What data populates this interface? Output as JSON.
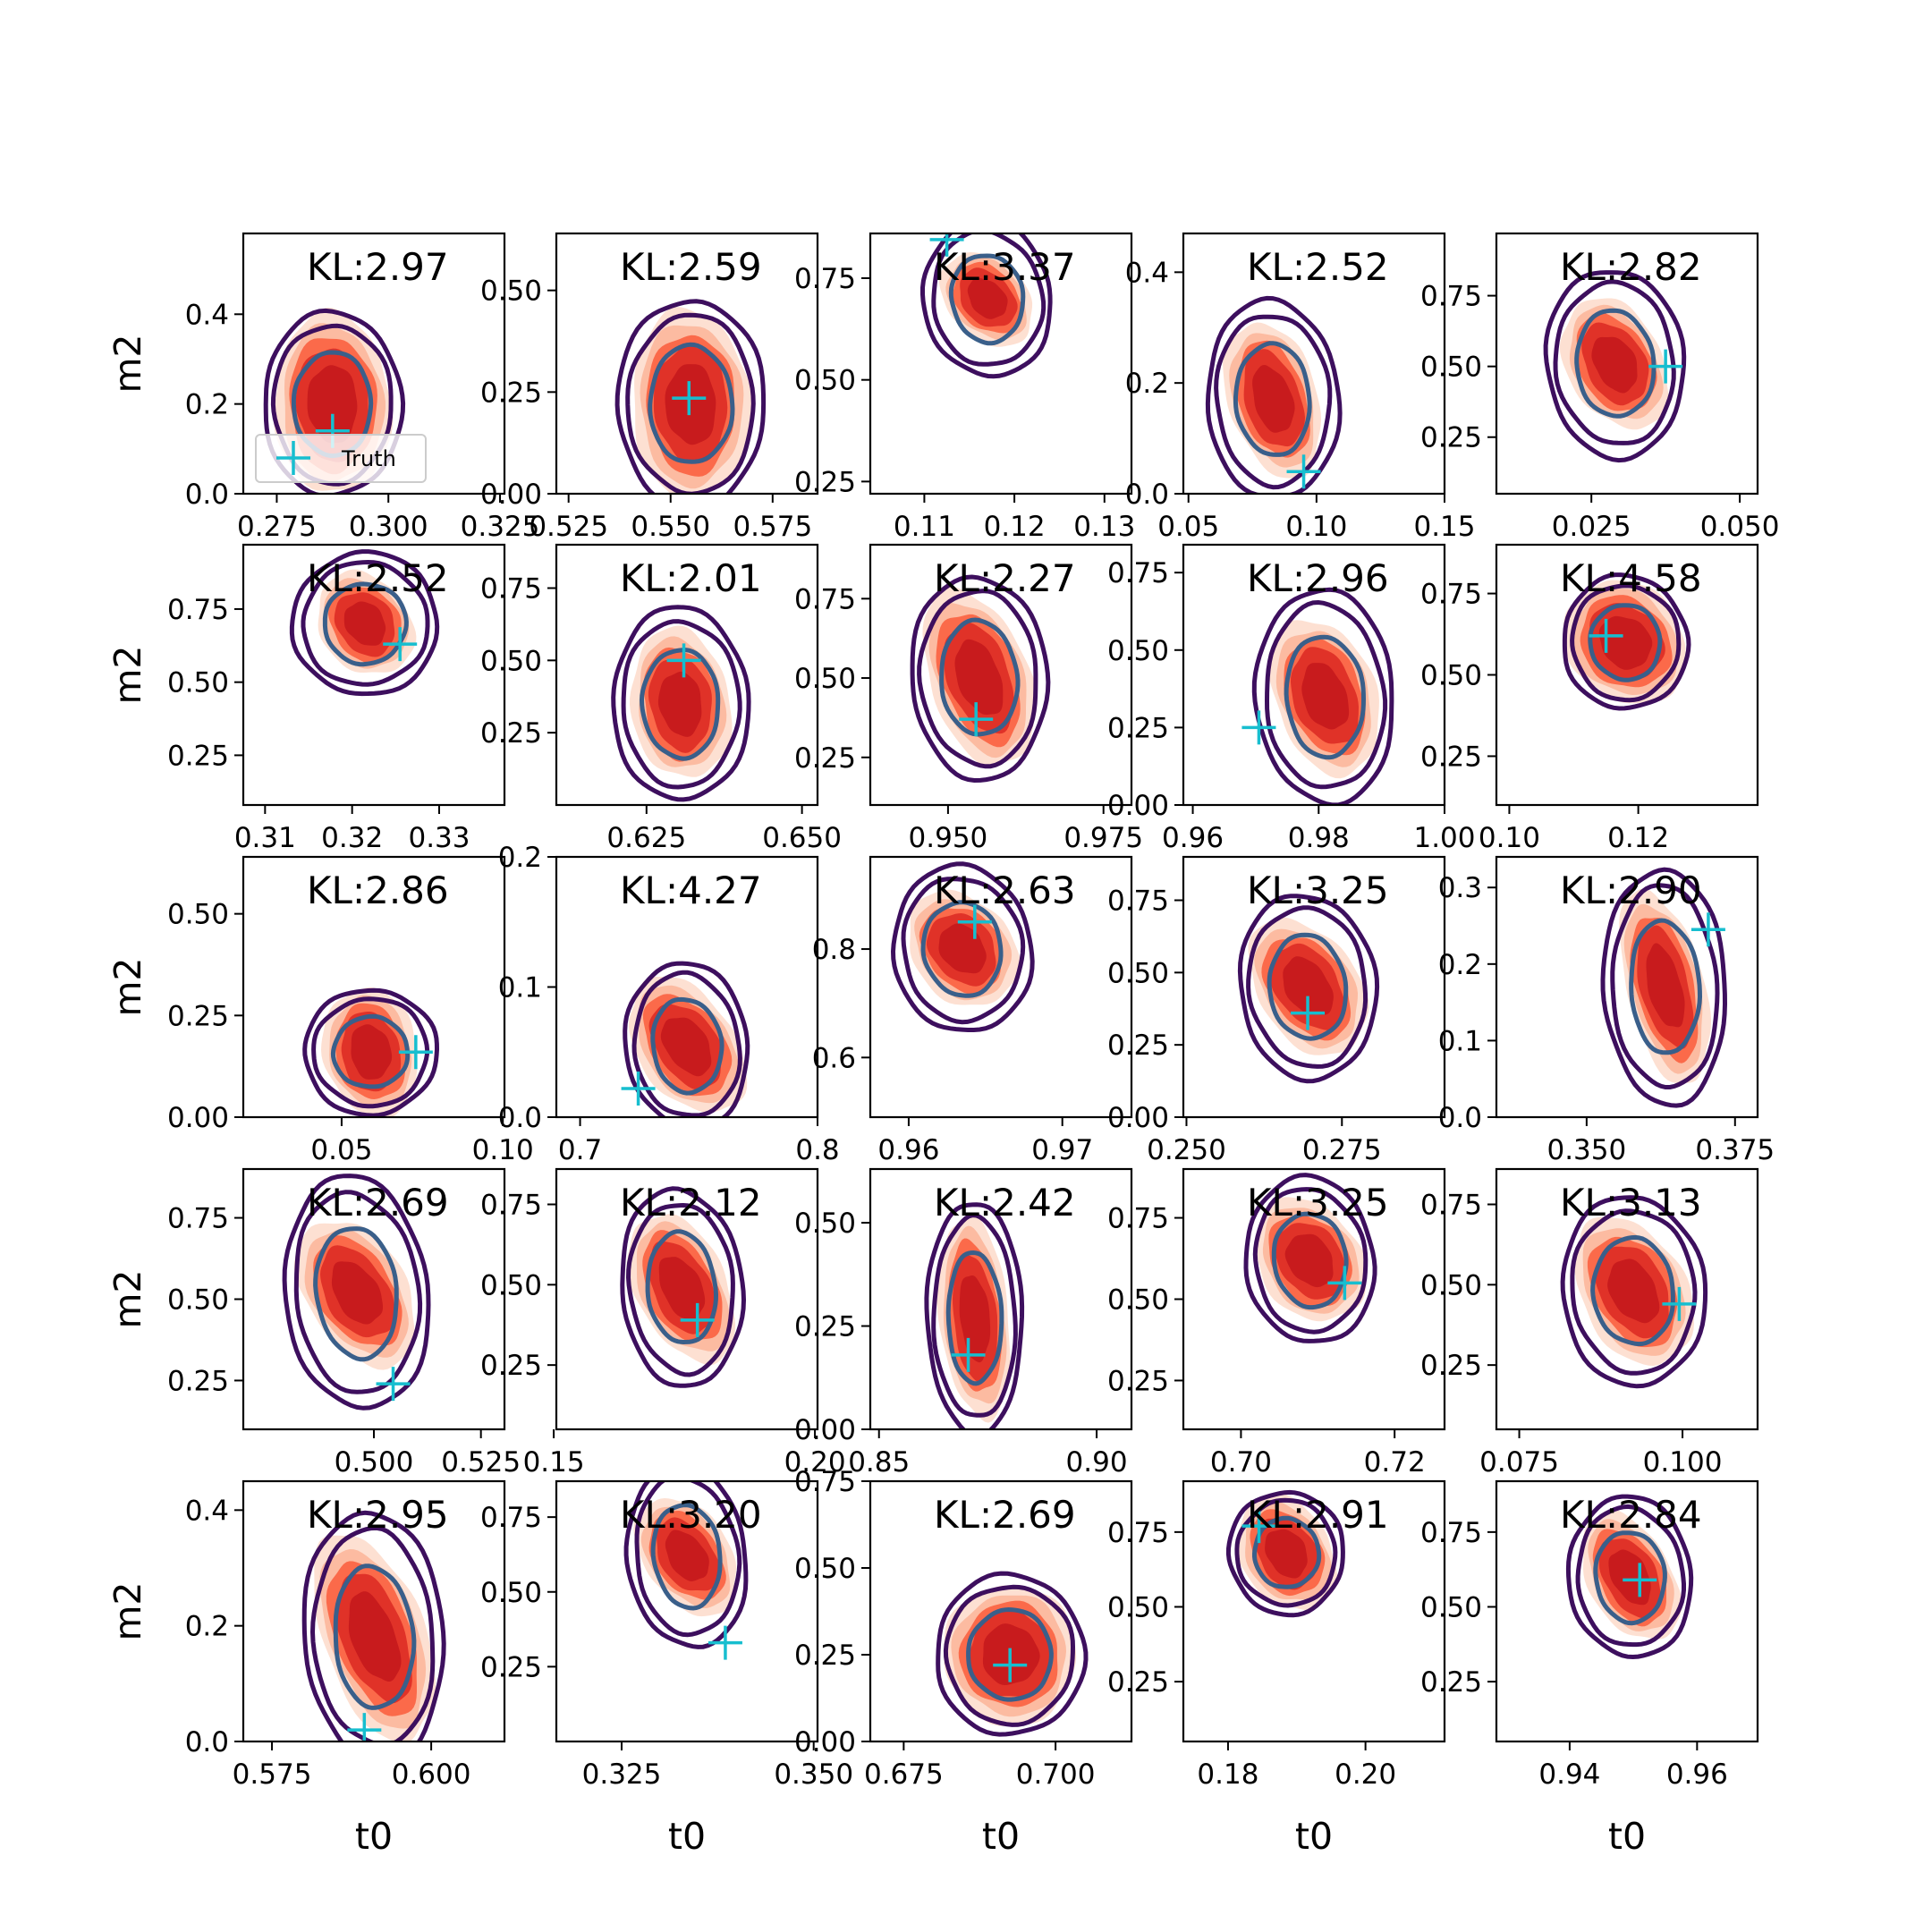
{
  "colors": {
    "posterior_fill": [
      "#fde0d2",
      "#fcbba1",
      "#fb6a4a",
      "#e03228",
      "#c81b1d"
    ],
    "prior_outer": "#3d0f5e",
    "prior_inner": "#3a5f8a",
    "truth_marker": "#17becf",
    "axes": "#000000"
  },
  "legend": {
    "label": "Truth",
    "marker": "plus-icon"
  },
  "axis_labels": {
    "x": "t0",
    "y": "m2"
  },
  "chart_data": [
    {
      "type": "contour",
      "kl": "KL:2.97",
      "xlim": [
        0.2675,
        0.326
      ],
      "ylim": [
        0,
        0.58
      ],
      "xticks": [
        0.275,
        0.3,
        0.325
      ],
      "xticklabels": [
        "0.275",
        "0.300",
        "0.325"
      ],
      "yticks": [
        0,
        0.2,
        0.4
      ],
      "yticklabels": [
        "0.0",
        "0.2",
        "0.4"
      ],
      "truth": [
        0.2875,
        0.14
      ],
      "center": [
        0.2875,
        0.2
      ],
      "post": [
        0.009,
        0.14
      ],
      "tilt": -0.05,
      "prior": [
        0.012,
        0.16
      ],
      "ylabel": true,
      "legend": true
    },
    {
      "type": "contour",
      "kl": "KL:2.59",
      "xlim": [
        0.522,
        0.586
      ],
      "ylim": [
        0,
        0.64
      ],
      "xticks": [
        0.525,
        0.55,
        0.575
      ],
      "xticklabels": [
        "0.525",
        "0.550",
        "0.575"
      ],
      "yticks": [
        0,
        0.25,
        0.5
      ],
      "yticklabels": [
        "0.00",
        "0.25",
        "0.50"
      ],
      "truth": [
        0.5545,
        0.235
      ],
      "center": [
        0.555,
        0.22
      ],
      "post": [
        0.01,
        0.16
      ],
      "tilt": -0.05,
      "prior": [
        0.014,
        0.2
      ]
    },
    {
      "type": "contour",
      "kl": "KL:3.37",
      "xlim": [
        0.104,
        0.133
      ],
      "ylim": [
        0.22,
        0.86
      ],
      "xticks": [
        0.11,
        0.12,
        0.13
      ],
      "xticklabels": [
        "0.11",
        "0.12",
        "0.13"
      ],
      "yticks": [
        0.25,
        0.5,
        0.75
      ],
      "yticklabels": [
        "0.25",
        "0.50",
        "0.75"
      ],
      "truth": [
        0.1125,
        0.845
      ],
      "center": [
        0.117,
        0.7
      ],
      "post": [
        0.003,
        0.09
      ],
      "tilt": -0.75,
      "prior": [
        0.0055,
        0.15
      ]
    },
    {
      "type": "contour",
      "kl": "KL:2.52",
      "xlim": [
        0.048,
        0.15
      ],
      "ylim": [
        0,
        0.47
      ],
      "xticks": [
        0.05,
        0.1,
        0.15
      ],
      "xticklabels": [
        "0.05",
        "0.10",
        "0.15"
      ],
      "yticks": [
        0,
        0.2,
        0.4
      ],
      "yticklabels": [
        "0.0",
        "0.2",
        "0.4"
      ],
      "truth": [
        0.095,
        0.04
      ],
      "center": [
        0.083,
        0.17
      ],
      "post": [
        0.012,
        0.1
      ],
      "tilt": -0.3,
      "prior": [
        0.02,
        0.14
      ]
    },
    {
      "type": "contour",
      "kl": "KL:2.82",
      "xlim": [
        0.009,
        0.053
      ],
      "ylim": [
        0.05,
        0.97
      ],
      "xticks": [
        0.025,
        0.05
      ],
      "xticklabels": [
        "0.025",
        "0.050"
      ],
      "yticks": [
        0.25,
        0.5,
        0.75
      ],
      "yticklabels": [
        "0.25",
        "0.50",
        "0.75"
      ],
      "truth": [
        0.0375,
        0.5
      ],
      "center": [
        0.029,
        0.51
      ],
      "post": [
        0.0055,
        0.17
      ],
      "tilt": -0.5,
      "prior": [
        0.009,
        0.26
      ]
    },
    {
      "type": "contour",
      "kl": "KL:2.52",
      "xlim": [
        0.3075,
        0.3375
      ],
      "ylim": [
        0.08,
        0.97
      ],
      "xticks": [
        0.31,
        0.32,
        0.33
      ],
      "xticklabels": [
        "0.31",
        "0.32",
        "0.33"
      ],
      "yticks": [
        0.25,
        0.5,
        0.75
      ],
      "yticklabels": [
        "0.25",
        "0.50",
        "0.75"
      ],
      "truth": [
        0.3255,
        0.63
      ],
      "center": [
        0.3215,
        0.7
      ],
      "post": [
        0.0035,
        0.13
      ],
      "tilt": -0.65,
      "prior": [
        0.0065,
        0.19
      ],
      "ylabel": true
    },
    {
      "type": "contour",
      "kl": "KL:2.01",
      "xlim": [
        0.6105,
        0.6525
      ],
      "ylim": [
        0,
        0.9
      ],
      "xticks": [
        0.625,
        0.65
      ],
      "xticklabels": [
        "0.625",
        "0.650"
      ],
      "yticks": [
        0.25,
        0.5,
        0.75
      ],
      "yticklabels": [
        "0.25",
        "0.50",
        "0.75"
      ],
      "truth": [
        0.631,
        0.5
      ],
      "center": [
        0.6305,
        0.35
      ],
      "post": [
        0.0055,
        0.18
      ],
      "tilt": -0.15,
      "prior": [
        0.0085,
        0.26
      ]
    },
    {
      "type": "contour",
      "kl": "KL:2.27",
      "xlim": [
        0.9375,
        0.9795
      ],
      "ylim": [
        0.1,
        0.92
      ],
      "xticks": [
        0.95,
        0.975
      ],
      "xticklabels": [
        "0.950",
        "0.975"
      ],
      "yticks": [
        0.25,
        0.5,
        0.75
      ],
      "yticklabels": [
        "0.25",
        "0.50",
        "0.75"
      ],
      "truth": [
        0.9545,
        0.37
      ],
      "center": [
        0.955,
        0.5
      ],
      "post": [
        0.0055,
        0.2
      ],
      "tilt": -0.35,
      "prior": [
        0.0085,
        0.25
      ]
    },
    {
      "type": "contour",
      "kl": "KL:2.96",
      "xlim": [
        0.9585,
        1.0
      ],
      "ylim": [
        0,
        0.84
      ],
      "xticks": [
        0.96,
        0.98,
        1.0
      ],
      "xticklabels": [
        "0.96",
        "0.98",
        "1.00"
      ],
      "yticks": [
        0,
        0.25,
        0.5,
        0.75
      ],
      "yticklabels": [
        "0.00",
        "0.25",
        "0.50",
        "0.75"
      ],
      "truth": [
        0.9705,
        0.25
      ],
      "center": [
        0.981,
        0.35
      ],
      "post": [
        0.0055,
        0.18
      ],
      "tilt": -0.35,
      "prior": [
        0.0085,
        0.27
      ]
    },
    {
      "type": "contour",
      "kl": "KL:4.58",
      "xlim": [
        0.098,
        0.1385
      ],
      "ylim": [
        0.1,
        0.9
      ],
      "xticks": [
        0.1,
        0.12
      ],
      "xticklabels": [
        "0.10",
        "0.12"
      ],
      "yticks": [
        0.25,
        0.5,
        0.75
      ],
      "yticklabels": [
        "0.25",
        "0.50",
        "0.75"
      ],
      "truth": [
        0.115,
        0.62
      ],
      "center": [
        0.118,
        0.6
      ],
      "post": [
        0.006,
        0.14
      ],
      "tilt": -0.75,
      "prior": [
        0.0075,
        0.16
      ]
    },
    {
      "type": "contour",
      "kl": "KL:2.86",
      "xlim": [
        0.0195,
        0.1005
      ],
      "ylim": [
        0,
        0.64
      ],
      "xticks": [
        0.05,
        0.1
      ],
      "xticklabels": [
        "0.05",
        "0.10"
      ],
      "yticks": [
        0,
        0.25,
        0.5
      ],
      "yticklabels": [
        "0.00",
        "0.25",
        "0.50"
      ],
      "truth": [
        0.073,
        0.16
      ],
      "center": [
        0.059,
        0.16
      ],
      "post": [
        0.01,
        0.11
      ],
      "tilt": -0.2,
      "prior": [
        0.016,
        0.12
      ],
      "ylabel": true
    },
    {
      "type": "contour",
      "kl": "KL:4.27",
      "xlim": [
        0.69,
        0.8
      ],
      "ylim": [
        0,
        0.2
      ],
      "xticks": [
        0.7,
        0.8
      ],
      "xticklabels": [
        "0.7",
        "0.8"
      ],
      "yticks": [
        0,
        0.1,
        0.2
      ],
      "yticklabels": [
        "0.0",
        "0.1",
        "0.2"
      ],
      "truth": [
        0.7245,
        0.022
      ],
      "center": [
        0.745,
        0.055
      ],
      "post": [
        0.014,
        0.04
      ],
      "tilt": -0.6,
      "prior": [
        0.02,
        0.05
      ]
    },
    {
      "type": "contour",
      "kl": "KL:2.63",
      "xlim": [
        0.9575,
        0.9745
      ],
      "ylim": [
        0.49,
        0.97
      ],
      "xticks": [
        0.96,
        0.97
      ],
      "xticklabels": [
        "0.96",
        "0.97"
      ],
      "yticks": [
        0.6,
        0.8
      ],
      "yticklabels": [
        "0.6",
        "0.8"
      ],
      "truth": [
        0.9643,
        0.85
      ],
      "center": [
        0.9635,
        0.8
      ],
      "post": [
        0.0022,
        0.08
      ],
      "tilt": -0.7,
      "prior": [
        0.0035,
        0.12
      ]
    },
    {
      "type": "contour",
      "kl": "KL:3.25",
      "xlim": [
        0.2495,
        0.2915
      ],
      "ylim": [
        0,
        0.9
      ],
      "xticks": [
        0.25,
        0.275
      ],
      "xticklabels": [
        "0.250",
        "0.275"
      ],
      "yticks": [
        0,
        0.25,
        0.5,
        0.75
      ],
      "yticklabels": [
        "0.00",
        "0.25",
        "0.50",
        "0.75"
      ],
      "truth": [
        0.2695,
        0.36
      ],
      "center": [
        0.2695,
        0.45
      ],
      "post": [
        0.0055,
        0.18
      ],
      "tilt": -0.6,
      "prior": [
        0.0085,
        0.25
      ]
    },
    {
      "type": "contour",
      "kl": "KL:2.90",
      "xlim": [
        0.3348,
        0.3788
      ],
      "ylim": [
        0,
        0.34
      ],
      "xticks": [
        0.35,
        0.375
      ],
      "xticklabels": [
        "0.350",
        "0.375"
      ],
      "yticks": [
        0,
        0.1,
        0.2,
        0.3
      ],
      "yticklabels": [
        "0.0",
        "0.1",
        "0.2",
        "0.3"
      ],
      "truth": [
        0.3705,
        0.245
      ],
      "center": [
        0.3632,
        0.17
      ],
      "post": [
        0.0045,
        0.09
      ],
      "tilt": -0.25,
      "prior": [
        0.008,
        0.12
      ]
    },
    {
      "type": "contour",
      "kl": "KL:2.69",
      "xlim": [
        0.4695,
        0.5305
      ],
      "ylim": [
        0.1,
        0.9
      ],
      "xticks": [
        0.5,
        0.525
      ],
      "xticklabels": [
        "0.500",
        "0.525"
      ],
      "yticks": [
        0.25,
        0.5,
        0.75
      ],
      "yticklabels": [
        "0.25",
        "0.50",
        "0.75"
      ],
      "truth": [
        0.5045,
        0.24
      ],
      "center": [
        0.496,
        0.52
      ],
      "post": [
        0.008,
        0.17
      ],
      "tilt": -0.55,
      "prior": [
        0.013,
        0.28
      ],
      "ylabel": true
    },
    {
      "type": "contour",
      "kl": "KL:2.12",
      "xlim": [
        0.1505,
        0.2005
      ],
      "ylim": [
        0.05,
        0.86
      ],
      "xticks": [
        0.15,
        0.2
      ],
      "xticklabels": [
        "0.15",
        "0.20"
      ],
      "yticks": [
        0.25,
        0.5,
        0.75
      ],
      "yticklabels": [
        "0.25",
        "0.50",
        "0.75"
      ],
      "truth": [
        0.1775,
        0.39
      ],
      "center": [
        0.1745,
        0.49
      ],
      "post": [
        0.006,
        0.17
      ],
      "tilt": -0.45,
      "prior": [
        0.009,
        0.24
      ]
    },
    {
      "type": "contour",
      "kl": "KL:2.42",
      "xlim": [
        0.848,
        0.908
      ],
      "ylim": [
        0,
        0.63
      ],
      "xticks": [
        0.85,
        0.9
      ],
      "xticklabels": [
        "0.85",
        "0.90"
      ],
      "yticks": [
        0,
        0.25,
        0.5
      ],
      "yticklabels": [
        "0.00",
        "0.25",
        "0.50"
      ],
      "truth": [
        0.8705,
        0.18
      ],
      "center": [
        0.872,
        0.27
      ],
      "post": [
        0.0055,
        0.17
      ],
      "tilt": -0.1,
      "prior": [
        0.0085,
        0.22
      ]
    },
    {
      "type": "contour",
      "kl": "KL:3.25",
      "xlim": [
        0.6925,
        0.7265
      ],
      "ylim": [
        0.1,
        0.9
      ],
      "xticks": [
        0.7,
        0.72
      ],
      "xticklabels": [
        "0.70",
        "0.72"
      ],
      "yticks": [
        0.25,
        0.5,
        0.75
      ],
      "yticklabels": [
        "0.25",
        "0.50",
        "0.75"
      ],
      "truth": [
        0.7135,
        0.55
      ],
      "center": [
        0.709,
        0.62
      ],
      "post": [
        0.0045,
        0.14
      ],
      "tilt": -0.6,
      "prior": [
        0.0065,
        0.2
      ]
    },
    {
      "type": "contour",
      "kl": "KL:3.13",
      "xlim": [
        0.0715,
        0.1115
      ],
      "ylim": [
        0.05,
        0.86
      ],
      "xticks": [
        0.075,
        0.1
      ],
      "xticklabels": [
        "0.075",
        "0.100"
      ],
      "yticks": [
        0.25,
        0.5,
        0.75
      ],
      "yticklabels": [
        "0.25",
        "0.50",
        "0.75"
      ],
      "truth": [
        0.0995,
        0.44
      ],
      "center": [
        0.0925,
        0.48
      ],
      "post": [
        0.0055,
        0.17
      ],
      "tilt": -0.5,
      "prior": [
        0.0085,
        0.23
      ]
    },
    {
      "type": "contour",
      "kl": "KL:2.95",
      "xlim": [
        0.5705,
        0.6115
      ],
      "ylim": [
        0,
        0.45
      ],
      "xticks": [
        0.575,
        0.6
      ],
      "xticklabels": [
        "0.575",
        "0.600"
      ],
      "yticks": [
        0,
        0.2,
        0.4
      ],
      "yticklabels": [
        "0.0",
        "0.2",
        "0.4"
      ],
      "truth": [
        0.5895,
        0.02
      ],
      "center": [
        0.591,
        0.18
      ],
      "post": [
        0.0055,
        0.13
      ],
      "tilt": -0.35,
      "prior": [
        0.0085,
        0.17
      ],
      "ylabel": true,
      "xlabel": true
    },
    {
      "type": "contour",
      "kl": "KL:3.20",
      "xlim": [
        0.3165,
        0.3505
      ],
      "ylim": [
        0,
        0.87
      ],
      "xticks": [
        0.325,
        0.35
      ],
      "xticklabels": [
        "0.325",
        "0.350"
      ],
      "yticks": [
        0.25,
        0.5,
        0.75
      ],
      "yticklabels": [
        "0.25",
        "0.50",
        "0.75"
      ],
      "truth": [
        0.3385,
        0.33
      ],
      "center": [
        0.3335,
        0.62
      ],
      "post": [
        0.0038,
        0.15
      ],
      "tilt": -0.6,
      "prior": [
        0.006,
        0.24
      ],
      "xlabel": true
    },
    {
      "type": "contour",
      "kl": "KL:2.69",
      "xlim": [
        0.6695,
        0.7125
      ],
      "ylim": [
        0,
        0.75
      ],
      "xticks": [
        0.675,
        0.7
      ],
      "xticklabels": [
        "0.675",
        "0.700"
      ],
      "yticks": [
        0,
        0.25,
        0.5,
        0.75
      ],
      "yticklabels": [
        "0.00",
        "0.25",
        "0.50",
        "0.75"
      ],
      "truth": [
        0.6925,
        0.22
      ],
      "center": [
        0.6925,
        0.25
      ],
      "post": [
        0.0075,
        0.14
      ],
      "tilt": -0.15,
      "prior": [
        0.0095,
        0.18
      ],
      "xlabel": true
    },
    {
      "type": "contour",
      "kl": "KL:2.91",
      "xlim": [
        0.1735,
        0.2115
      ],
      "ylim": [
        0.05,
        0.92
      ],
      "xticks": [
        0.18,
        0.2
      ],
      "xticklabels": [
        "0.18",
        "0.20"
      ],
      "yticks": [
        0.25,
        0.5,
        0.75
      ],
      "yticklabels": [
        "0.25",
        "0.50",
        "0.75"
      ],
      "truth": [
        0.1845,
        0.77
      ],
      "center": [
        0.1885,
        0.68
      ],
      "post": [
        0.0045,
        0.14
      ],
      "tilt": -0.55,
      "prior": [
        0.0065,
        0.16
      ],
      "xlabel": true
    },
    {
      "type": "contour",
      "kl": "KL:2.84",
      "xlim": [
        0.9285,
        0.9695
      ],
      "ylim": [
        0.05,
        0.92
      ],
      "xticks": [
        0.94,
        0.96
      ],
      "xticklabels": [
        "0.94",
        "0.96"
      ],
      "yticks": [
        0.25,
        0.5,
        0.75
      ],
      "yticklabels": [
        "0.25",
        "0.50",
        "0.75"
      ],
      "truth": [
        0.951,
        0.59
      ],
      "center": [
        0.9495,
        0.6
      ],
      "post": [
        0.0045,
        0.16
      ],
      "tilt": -0.5,
      "prior": [
        0.0075,
        0.21
      ],
      "xlabel": true
    }
  ]
}
